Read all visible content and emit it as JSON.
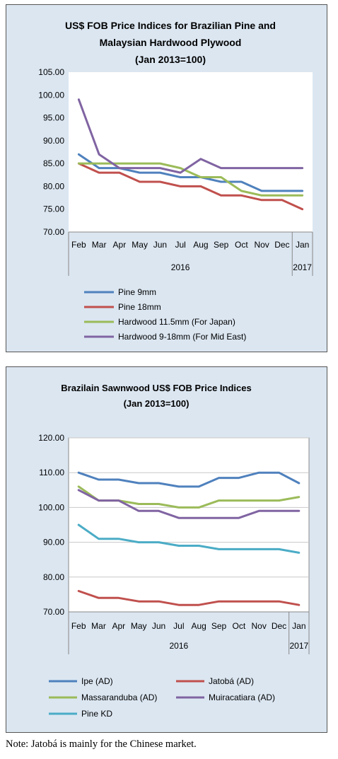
{
  "chart_data": [
    {
      "type": "line",
      "title": [
        "US$ FOB Price Indices for Brazilian Pine and",
        "Malaysian Hardwood Plywood",
        "(Jan 2013=100)"
      ],
      "categories": [
        "Feb",
        "Mar",
        "Apr",
        "May",
        "Jun",
        "Jul",
        "Aug",
        "Sep",
        "Oct",
        "Nov",
        "Dec",
        "Jan"
      ],
      "year_labels": [
        "2016",
        "2017"
      ],
      "yticks": [
        "105.00",
        "100.00",
        "95.00",
        "90.00",
        "85.00",
        "80.00",
        "75.00",
        "70.00"
      ],
      "ylim": [
        70,
        105
      ],
      "legend_position": "bottom",
      "series": [
        {
          "name": "Pine 9mm",
          "color": "#4f81bd",
          "values": [
            87,
            84,
            84,
            83,
            83,
            82,
            82,
            81,
            81,
            79,
            79,
            79
          ]
        },
        {
          "name": "Pine 18mm",
          "color": "#c0504d",
          "values": [
            85,
            83,
            83,
            81,
            81,
            80,
            80,
            78,
            78,
            77,
            77,
            75
          ]
        },
        {
          "name": "Hardwood 11.5mm (For Japan)",
          "color": "#9bbb59",
          "values": [
            85,
            85,
            85,
            85,
            85,
            84,
            82,
            82,
            79,
            78,
            78,
            78
          ]
        },
        {
          "name": "Hardwood 9-18mm (For Mid East)",
          "color": "#8064a2",
          "values": [
            99,
            87,
            84,
            84,
            84,
            83,
            86,
            84,
            84,
            84,
            84,
            84
          ]
        }
      ]
    },
    {
      "type": "line",
      "title": [
        "Brazilain Sawnwood US$ FOB Price Indices",
        "(Jan 2013=100)"
      ],
      "categories": [
        "Feb",
        "Mar",
        "Apr",
        "May",
        "Jun",
        "Jul",
        "Aug",
        "Sep",
        "Oct",
        "Nov",
        "Dec",
        "Jan"
      ],
      "year_labels": [
        "2016",
        "2017"
      ],
      "yticks": [
        "120.00",
        "110.00",
        "100.00",
        "90.00",
        "80.00",
        "70.00"
      ],
      "ylim": [
        70,
        120
      ],
      "legend_position": "bottom",
      "series": [
        {
          "name": "Ipe (AD)",
          "color": "#4f81bd",
          "values": [
            110,
            108,
            108,
            107,
            107,
            106,
            106,
            108.5,
            108.5,
            110,
            110,
            107
          ]
        },
        {
          "name": "Jatobá (AD)",
          "color": "#c0504d",
          "values": [
            76,
            74,
            74,
            73,
            73,
            72,
            72,
            73,
            73,
            73,
            73,
            72
          ]
        },
        {
          "name": "Massaranduba (AD)",
          "color": "#9bbb59",
          "values": [
            106,
            102,
            102,
            101,
            101,
            100,
            100,
            102,
            102,
            102,
            102,
            103
          ]
        },
        {
          "name": "Muiracatiara (AD)",
          "color": "#8064a2",
          "values": [
            105,
            102,
            102,
            99,
            99,
            97,
            97,
            97,
            97,
            99,
            99,
            99
          ]
        },
        {
          "name": "Pine KD",
          "color": "#4bacc6",
          "values": [
            95,
            91,
            91,
            90,
            90,
            89,
            89,
            88,
            88,
            88,
            88,
            87
          ]
        }
      ]
    }
  ],
  "note": "Note: Jatobá is mainly for the Chinese market."
}
